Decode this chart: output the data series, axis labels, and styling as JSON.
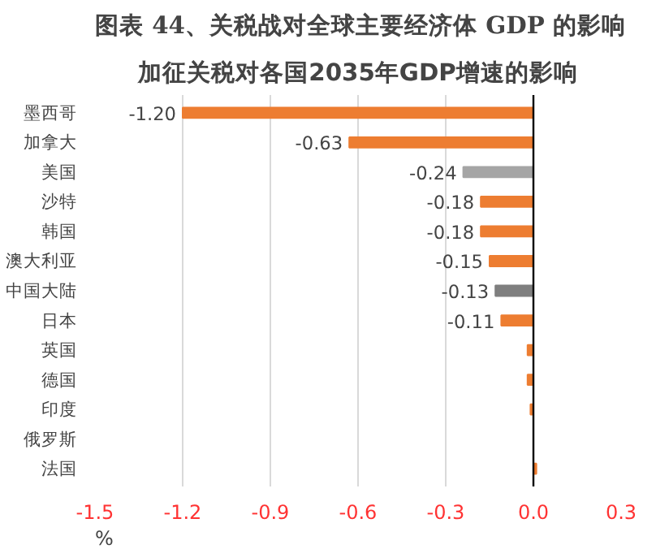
{
  "chart_data": {
    "type": "bar",
    "orientation": "horizontal",
    "title": "图表 44、关税战对全球主要经济体 GDP 的影响",
    "subtitle": "加征关税对各国2035年GDP增速的影响",
    "categories": [
      "墨西哥",
      "加拿大",
      "美国",
      "沙特",
      "韩国",
      "澳大利亚",
      "中国大陆",
      "日本",
      "英国",
      "德国",
      "印度",
      "俄罗斯",
      "法国"
    ],
    "values": [
      -1.2,
      -0.63,
      -0.24,
      -0.18,
      -0.18,
      -0.15,
      -0.13,
      -0.11,
      -0.02,
      -0.02,
      -0.01,
      0,
      0.01
    ],
    "value_labels": [
      "-1.20",
      "-0.63",
      "-0.24",
      "-0.18",
      "-0.18",
      "-0.15",
      "-0.13",
      "-0.11",
      null,
      null,
      null,
      null,
      null
    ],
    "colors": [
      "#ed7d31",
      "#ed7d31",
      "#a5a5a5",
      "#ed7d31",
      "#ed7d31",
      "#ed7d31",
      "#7f7f7f",
      "#ed7d31",
      "#ed7d31",
      "#ed7d31",
      "#ed7d31",
      "#ed7d31",
      "#ed7d31"
    ],
    "xlim": [
      -1.5,
      0.3
    ],
    "xticks": [
      {
        "value": -1.5,
        "label": "-1.5"
      },
      {
        "value": -1.2,
        "label": "-1.2"
      },
      {
        "value": -0.9,
        "label": "-0.9"
      },
      {
        "value": -0.6,
        "label": "-0.6"
      },
      {
        "value": -0.3,
        "label": "-0.3"
      },
      {
        "value": 0,
        "label": "0.0"
      },
      0.3
    ],
    "annotations": [
      "%"
    ],
    "ref_lines": [
      {
        "axis": "x",
        "value": 0,
        "color": "#000000"
      }
    ],
    "grid": "x"
  }
}
